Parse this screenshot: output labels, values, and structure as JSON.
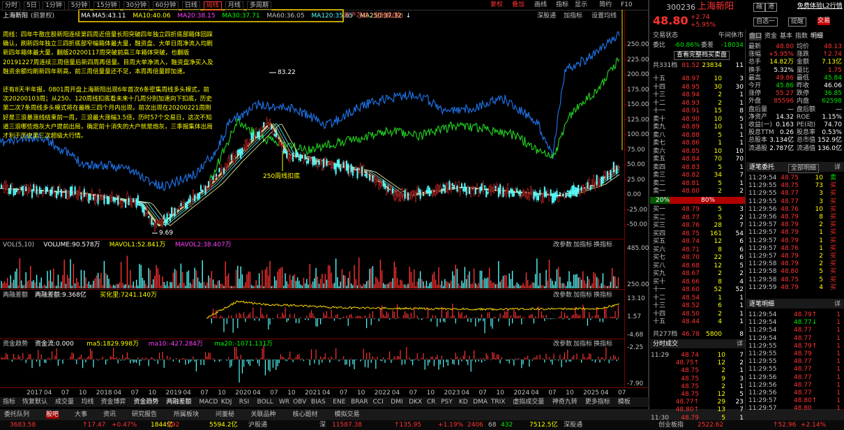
{
  "toolbar": {
    "periods": [
      "分时",
      "5日",
      "1分钟",
      "5分钟",
      "15分钟",
      "30分钟",
      "60分钟",
      "日线",
      "周线",
      "月线",
      "多周期"
    ],
    "active": "周线",
    "tools": [
      "复权",
      "叠加",
      "画线",
      "指标",
      "显示",
      "简约",
      "F10"
    ]
  },
  "main_chart": {
    "name": "上海新阳",
    "adjust": "(前复权)",
    "ma_label": "MA",
    "ma": [
      {
        "label": "MA5:43.11",
        "color": "#ffffff"
      },
      {
        "label": "MA10:40.06",
        "color": "#ffff00"
      },
      {
        "label": "MA20:38.15",
        "color": "#ff40ff"
      },
      {
        "label": "MA30:37.71",
        "color": "#00ff00"
      },
      {
        "label": "MA60:36.05",
        "color": "#c0c0c0"
      },
      {
        "label": "MA120:35.65",
        "color": "#54fcfc"
      },
      {
        "label": "MA250:37.32",
        "color": "#ffffa0"
      }
    ],
    "ma_arrow": "↓",
    "tags": [
      "新产芯片",
      "光刻机(胶)"
    ],
    "actions": [
      "深股通",
      "加指标",
      "设置均线"
    ],
    "notes": [
      "周线：四年牛散庄股新阳连续第四周近倍量长阳突破四年独立四折底部箱体回踩确认，刷新四年独立三四折底部窄幅箱体最大量，融资盘、大单日周净流入均刷新四年箱体最大量，翻版20200117周突破前高三年箱体突破，也翻版20191227周连续三周倍量后新四周再倍量。目周大单净流入，融资盘净买入及融资余额均刷新四年新高，前三周倍量量还不足，本周再倍量即加速。",
      "还有8天半年报，0801周开盘上海新阳出现6年首次6条密集周线多头模式，前次20200103周；从250、120周线扣底看未来十几周分别加速向下扣底，历史第二次7条周线多头模式将在最晚三四个月内出现，前次出现在20200221周刚好是三浪暴涨线结束前一周，三浪最大涨幅3.5倍，历时57个交易日，这次不知道三浪哪些炮灰大户提前出局，确定前十消失的大户就是炮灰，三季报集体出局才利于历史第三次超级大行情。"
    ],
    "annotations": [
      "83.22",
      "250周线扣底",
      "9.69"
    ],
    "axis": [
      "250.00",
      "225.00",
      "200.00",
      "175.00",
      "150.00",
      "125.00",
      "100.00",
      "75.00",
      "50.00",
      "25.00",
      "0.00",
      "-25.00",
      "-50.00"
    ]
  },
  "panel_actions": [
    "改参数",
    "加指标",
    "换指标"
  ],
  "sub_panels": [
    {
      "title": "VOL(5,10)",
      "items": [
        {
          "label": "VOLUME:90.578万",
          "color": "#ffffff"
        },
        {
          "label": "MAVOL1:52.841万",
          "color": "#ffff00"
        },
        {
          "label": "MAVOL2:38.407万",
          "color": "#ff40ff"
        }
      ],
      "axis": [
        "485.00",
        "250.00"
      ]
    },
    {
      "title": "两融差额",
      "items": [
        {
          "label": "两融差额:9.368亿",
          "color": "#ffffff"
        },
        {
          "label": "买化里:7241.140万",
          "color": "#ffff00"
        }
      ],
      "axis": [
        "13.10",
        "1.57",
        "-4.68"
      ]
    },
    {
      "title": "资金趋势",
      "items": [
        {
          "label": "资金流:0.000",
          "color": "#ffffff"
        },
        {
          "label": "ma5:1829.998万",
          "color": "#ffff00"
        },
        {
          "label": "ma10:-427.284万",
          "color": "#ff40ff"
        },
        {
          "label": "ma20:-1071.131万",
          "color": "#00ff00"
        }
      ],
      "axis": [
        "-2.25",
        "-7.90"
      ]
    }
  ],
  "dates": [
    "2017",
    "04",
    "07",
    "10",
    "2018",
    "04",
    "07",
    "10",
    "2019",
    "04",
    "07",
    "10",
    "2020",
    "04",
    "07",
    "10",
    "2021",
    "04",
    "07",
    "10",
    "2022",
    "04",
    "07",
    "10",
    "2023",
    "04",
    "07",
    "10",
    "2024",
    "04",
    "07",
    "10",
    "2025",
    "04",
    "07"
  ],
  "indicator_tabs": [
    "指标",
    "恢复默认",
    "成交量",
    "均线",
    "资金博弈",
    "资金趋势",
    "两融差额",
    "MACD",
    "KDJ",
    "RSI",
    "BOLL",
    "WR",
    "OBV",
    "BIAS",
    "ENE",
    "BRAR",
    "CCI",
    "DMI",
    "DKX",
    "CR",
    "PSY",
    "KD",
    "DMA",
    "TRIX",
    "虚拟成交量",
    "神奇九转",
    "更多指标",
    "模板"
  ],
  "bottom_tabs": [
    "委托队列",
    "股吧",
    "大事",
    "资讯",
    "研究报告",
    "所属板块",
    "问董秘",
    "关联品种",
    "核心题材",
    "模拟交易"
  ],
  "index_strip": [
    {
      "t": "3683.58",
      "c": "#ff3232"
    },
    {
      "t": "↑17.47",
      "c": "#ff3232"
    },
    {
      "t": "+0.47%",
      "c": "#ff3232"
    },
    {
      "t": "1844亿",
      "c": "#ffff00"
    },
    {
      "t": "492",
      "c": "#ff3232"
    },
    {
      "t": "5594.2亿",
      "c": "#ffff00"
    },
    {
      "t": "沪股通",
      "c": "#c0c0c0"
    },
    {
      "t": "深",
      "c": "#c0c0c0"
    },
    {
      "t": "11587.38",
      "c": "#ff3232"
    },
    {
      "t": "↑135.95",
      "c": "#ff3232"
    },
    {
      "t": "+1.19%",
      "c": "#ff3232"
    },
    {
      "t": "2406",
      "c": "#ff3232"
    },
    {
      "t": "68",
      "c": "#c0c0c0"
    },
    {
      "t": "432",
      "c": "#00e600"
    },
    {
      "t": "7512.5亿",
      "c": "#ffff00"
    },
    {
      "t": "深股通",
      "c": "#c0c0c0"
    },
    {
      "t": "创业板指",
      "c": "#c0c0c0"
    },
    {
      "t": "2522.62",
      "c": "#ff3232"
    },
    {
      "t": "↑52.96",
      "c": "#ff3232"
    },
    {
      "t": "+2.14%",
      "c": "#ff3232"
    }
  ],
  "quote": {
    "code": "300236",
    "name": "上海新阳",
    "badges": [
      "融",
      "港"
    ],
    "promo": "免费体验L2行情",
    "price": "48.80",
    "change": "+2.74",
    "pct": "+5.95%",
    "buttons": [
      "自选一",
      "提醒",
      "交易"
    ]
  },
  "book": {
    "status_label": "交易状态",
    "status": "午间休市",
    "ratio_label": "委比",
    "ratio": "-60.86%",
    "diff_label": "委差",
    "diff": "-18034",
    "full": "查看完整档买卖盘",
    "sell_total": [
      "共331档",
      "81.52",
      "23834",
      "11"
    ],
    "sells": [
      [
        "十五",
        "48.97",
        "10",
        "3"
      ],
      [
        "十四",
        "48.95",
        "30",
        "30"
      ],
      [
        "十三",
        "48.94",
        "2",
        "1"
      ],
      [
        "十二",
        "48.93",
        "2",
        "1"
      ],
      [
        "十一",
        "48.91",
        "15",
        "8"
      ],
      [
        "卖十",
        "48.90",
        "10",
        "5"
      ],
      [
        "卖九",
        "48.89",
        "10",
        "1"
      ],
      [
        "卖八",
        "48.88",
        "5",
        "1"
      ],
      [
        "卖七",
        "48.86",
        "1",
        "1"
      ],
      [
        "卖六",
        "48.85",
        "10",
        "10"
      ],
      [
        "卖五",
        "48.84",
        "70",
        "70"
      ],
      [
        "卖四",
        "48.83",
        "5",
        "1"
      ],
      [
        "卖三",
        "48.82",
        "34",
        "7"
      ],
      [
        "卖二",
        "48.81",
        "5",
        "1"
      ],
      [
        "卖一",
        "48.80",
        "2",
        "2"
      ]
    ],
    "split": [
      "20%",
      "80%"
    ],
    "buys": [
      [
        "买一",
        "48.79",
        "5",
        "3"
      ],
      [
        "买二",
        "48.77",
        "5",
        "2"
      ],
      [
        "买三",
        "48.76",
        "28",
        "7"
      ],
      [
        "买四",
        "48.75",
        "161",
        "54"
      ],
      [
        "买五",
        "48.74",
        "12",
        "6"
      ],
      [
        "买六",
        "48.71",
        "8",
        "6"
      ],
      [
        "买七",
        "48.70",
        "22",
        "6"
      ],
      [
        "买八",
        "48.68",
        "12",
        "5"
      ],
      [
        "买九",
        "48.67",
        "2",
        "2"
      ],
      [
        "买十",
        "48.66",
        "8",
        "4"
      ],
      [
        "十一",
        "48.60",
        "52",
        "52"
      ],
      [
        "十二",
        "48.54",
        "1",
        "1"
      ],
      [
        "十三",
        "48.52",
        "6",
        "1"
      ],
      [
        "十四",
        "48.50",
        "2",
        "1"
      ],
      [
        "十五",
        "48.44",
        "4",
        "1"
      ]
    ],
    "buy_total": [
      "共277档",
      "46.78",
      "5800",
      "8"
    ]
  },
  "trades": {
    "title": "分时成交",
    "more": "详",
    "rows": [
      [
        "11:29",
        "48.74",
        "10",
        "7"
      ],
      [
        "48.75↑",
        "12",
        "2"
      ],
      [
        "48.75",
        "2",
        "1"
      ],
      [
        "48.75",
        "9",
        "3"
      ],
      [
        "48.75",
        "2",
        "1"
      ],
      [
        "48.75",
        "12",
        "5"
      ],
      [
        "48.77↑",
        "29",
        "23"
      ],
      [
        "48.80↑",
        "13",
        "7"
      ],
      [
        "11:30",
        "48.79",
        "5",
        "1"
      ]
    ]
  },
  "stats": {
    "tabs": [
      "盘口",
      "资金",
      "基本",
      "指数",
      "明细"
    ],
    "rows": [
      [
        {
          "k": "最新"
        },
        {
          "v": "48.80",
          "c": "#ff3232"
        },
        {
          "k": "均价"
        },
        {
          "v": "48.13",
          "c": "#ff3232"
        }
      ],
      [
        {
          "k": "涨幅"
        },
        {
          "v": "+5.95%",
          "c": "#ff3232"
        },
        {
          "k": "涨跌"
        },
        {
          "v": "↑2.74",
          "c": "#ff3232"
        }
      ],
      [
        {
          "k": "总手"
        },
        {
          "v": "14.82万",
          "c": "#ffff00"
        },
        {
          "k": "金额"
        },
        {
          "v": "7.13亿",
          "c": "#ffff00"
        }
      ],
      [
        {
          "k": "换手"
        },
        {
          "v": "5.32%",
          "c": "#ffffff"
        },
        {
          "k": "量比"
        },
        {
          "v": "1.75",
          "c": "#ff3232"
        }
      ],
      [
        {
          "k": "最高"
        },
        {
          "v": "49.86",
          "c": "#ff3232"
        },
        {
          "k": "最低"
        },
        {
          "v": "45.84",
          "c": "#00e600"
        }
      ],
      [
        {
          "k": "今开"
        },
        {
          "v": "45.86",
          "c": "#00e600"
        },
        {
          "k": "昨收"
        },
        {
          "v": "46.06",
          "c": "#ffffff"
        }
      ],
      [
        {
          "k": "涨停"
        },
        {
          "v": "55.27",
          "c": "#ff3232"
        },
        {
          "k": "跌停"
        },
        {
          "v": "36.85",
          "c": "#00e600"
        }
      ],
      [
        {
          "k": "外盘"
        },
        {
          "v": "85596",
          "c": "#ff3232"
        },
        {
          "k": "内盘"
        },
        {
          "v": "62598",
          "c": "#00e600"
        }
      ],
      [
        {
          "k": "盘后量"
        },
        {
          "v": "—",
          "c": "#ffffff"
        },
        {
          "k": "盘后额"
        },
        {
          "v": "—",
          "c": "#ffffff"
        }
      ],
      [
        {
          "k": "净资产"
        },
        {
          "v": "14.32",
          "c": "#ffffff"
        },
        {
          "k": "ROE"
        },
        {
          "v": "1.15%",
          "c": "#ffffff"
        }
      ],
      [
        {
          "k": "收益(一)"
        },
        {
          "v": "0.163",
          "c": "#ffffff"
        },
        {
          "k": "PE(动)"
        },
        {
          "v": "74.70",
          "c": "#ffffff"
        }
      ],
      [
        {
          "k": "股息TTM"
        },
        {
          "v": "0.26",
          "c": "#ffffff"
        },
        {
          "k": "股息率"
        },
        {
          "v": "0.53%",
          "c": "#ffffff"
        }
      ],
      [
        {
          "k": "总股本"
        },
        {
          "v": "3.134亿",
          "c": "#ffffff"
        },
        {
          "k": "总市值"
        },
        {
          "v": "152.9亿",
          "c": "#ffffff"
        }
      ],
      [
        {
          "k": "流通股"
        },
        {
          "v": "2.787亿",
          "c": "#ffffff"
        },
        {
          "k": "流通值"
        },
        {
          "v": "136.0亿",
          "c": "#ffffff"
        }
      ]
    ]
  },
  "orders": {
    "title": "逐笔委托",
    "filter": "全部明细",
    "more": "详",
    "rows": [
      [
        "11:29:54",
        "48.75",
        "10",
        "卖"
      ],
      [
        "11:29:55",
        "48.75",
        "73",
        "买"
      ],
      [
        "11:29:55",
        "48.77",
        "3",
        "买"
      ],
      [
        "11:29:55",
        "48.77",
        "3",
        "买"
      ],
      [
        "11:29:56",
        "48.76",
        "10",
        "买"
      ],
      [
        "11:29:56",
        "48.79",
        "8",
        "买"
      ],
      [
        "11:29:57",
        "48.79",
        "2",
        "买"
      ],
      [
        "11:29:57",
        "48.79",
        "1",
        "买"
      ],
      [
        "11:29:57",
        "48.79",
        "1",
        "买"
      ],
      [
        "11:29:57",
        "48.76",
        "1",
        "买"
      ],
      [
        "11:29:57",
        "48.79",
        "2",
        "买"
      ],
      [
        "11:29:58",
        "48.79",
        "2",
        "买"
      ],
      [
        "11:29:58",
        "48.80",
        "5",
        "买"
      ],
      [
        "11:29:58",
        "48.75",
        "5",
        "买"
      ],
      [
        "11:29:59",
        "48.79",
        "4",
        "买"
      ]
    ]
  },
  "ticks": {
    "title": "逐笔明细",
    "more": "详",
    "rows": [
      [
        "11:29:54",
        "48.79↑",
        "1"
      ],
      [
        "11:29:54",
        "48.77↓",
        "1"
      ],
      [
        "11:29:54",
        "48.77",
        "1"
      ],
      [
        "11:29:54",
        "48.77",
        "1"
      ],
      [
        "11:29:55",
        "48.79↑",
        "1"
      ],
      [
        "11:29:55",
        "48.79",
        "1"
      ],
      [
        "11:29:55",
        "48.77",
        "1"
      ],
      [
        "11:29:55",
        "48.77",
        "1"
      ],
      [
        "11:29:56",
        "48.77",
        "1"
      ],
      [
        "11:29:56",
        "48.77",
        "1"
      ],
      [
        "11:29:56",
        "48.77",
        "1"
      ],
      [
        "11:29:57",
        "48.80↑",
        "1"
      ],
      [
        "11:29:57",
        "48.80",
        "1"
      ]
    ]
  }
}
